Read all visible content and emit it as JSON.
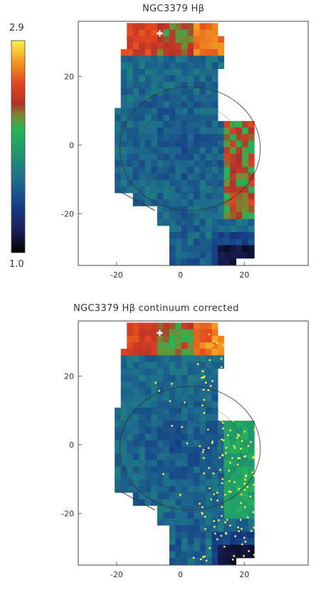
{
  "chart_data": [
    {
      "type": "heatmap",
      "title": "NGC3379 Hβ",
      "xlim": [
        -32,
        40
      ],
      "ylim": [
        -35,
        36
      ],
      "xticks": [
        "-20",
        "0",
        "20"
      ],
      "yticks": [
        "20",
        "0",
        "-20"
      ],
      "xtick_values": [
        -20,
        0,
        20
      ],
      "ytick_values": [
        20,
        0,
        -20
      ],
      "colorbar": {
        "min_label": "1.0",
        "max_label": "2.9",
        "min": 1.0,
        "max": 2.9
      },
      "grid": true,
      "overlay_markers": false
    },
    {
      "type": "heatmap",
      "title": "NGC3379 Hβ continuum corrected",
      "xlim": [
        -32,
        40
      ],
      "ylim": [
        -35,
        36
      ],
      "xticks": [
        "-20",
        "0",
        "20"
      ],
      "yticks": [
        "20",
        "0",
        "-20"
      ],
      "xtick_values": [
        -20,
        0,
        20
      ],
      "ytick_values": [
        20,
        0,
        -20
      ],
      "grid": true,
      "overlay_markers": true
    }
  ],
  "colors": {
    "background": "#ffffff",
    "axis": "#444444",
    "contour": "#333333",
    "marker": "#f5e85a"
  }
}
